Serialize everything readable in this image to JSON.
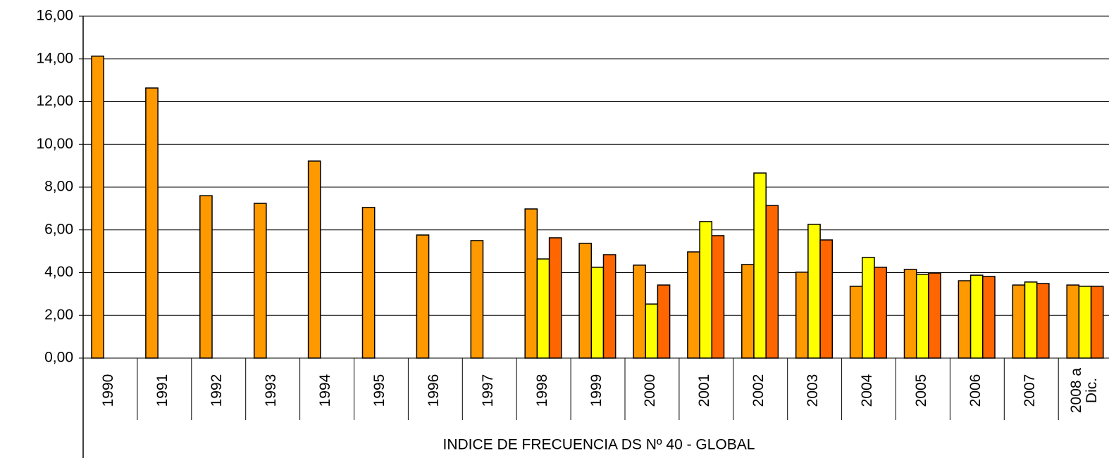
{
  "chart_data": {
    "type": "bar",
    "title": "INDICE DE FRECUENCIA DS Nº 40 - GLOBAL",
    "categories": [
      "1990",
      "1991",
      "1992",
      "1993",
      "1994",
      "1995",
      "1996",
      "1997",
      "1998",
      "1999",
      "2000",
      "2001",
      "2002",
      "2003",
      "2004",
      "2005",
      "2006",
      "2007",
      "2008 a Dic."
    ],
    "series": [
      {
        "color": "#FF9900",
        "values": [
          14.13,
          12.64,
          7.6,
          7.24,
          9.22,
          7.05,
          5.76,
          5.5,
          6.98,
          5.37,
          4.35,
          4.97,
          4.38,
          4.02,
          3.36,
          4.15,
          3.62,
          3.42,
          3.42
        ]
      },
      {
        "color": "#FFFF00",
        "values": [
          null,
          null,
          null,
          null,
          null,
          null,
          null,
          null,
          4.64,
          4.25,
          2.53,
          6.39,
          8.66,
          6.26,
          4.71,
          3.92,
          3.88,
          3.56,
          3.36
        ]
      },
      {
        "color": "#FF6600",
        "values": [
          null,
          null,
          null,
          null,
          null,
          null,
          null,
          null,
          5.63,
          4.84,
          3.42,
          5.73,
          7.14,
          5.53,
          4.25,
          3.98,
          3.82,
          3.49,
          3.36
        ]
      }
    ],
    "ylim": [
      0,
      16
    ],
    "yticks": [
      {
        "value": 0,
        "label": "0,00"
      },
      {
        "value": 2,
        "label": "2,00"
      },
      {
        "value": 4,
        "label": "4,00"
      },
      {
        "value": 6,
        "label": "6,00"
      },
      {
        "value": 8,
        "label": "8,00"
      },
      {
        "value": 10,
        "label": "10,00"
      },
      {
        "value": 12,
        "label": "12,00"
      },
      {
        "value": 14,
        "label": "14,00"
      },
      {
        "value": 16,
        "label": "16,00"
      }
    ],
    "grid": true
  }
}
